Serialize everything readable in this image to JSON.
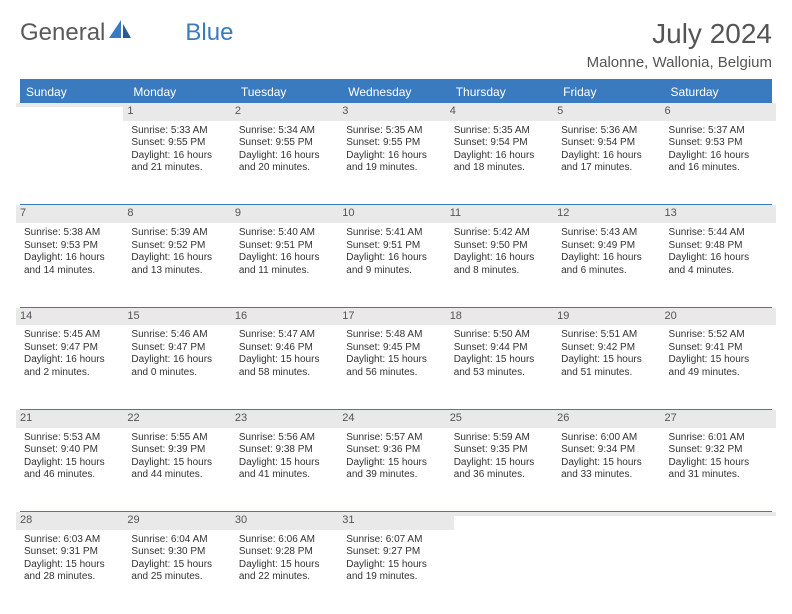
{
  "brand": {
    "text1": "General",
    "text2": "Blue",
    "logo_color": "#3a7bbf"
  },
  "title": "July 2024",
  "location": "Malonne, Wallonia, Belgium",
  "colors": {
    "header_bg": "#3a7bbf",
    "header_text": "#ffffff",
    "daynum_bg": "#e9e9e9",
    "rule": "#3a7bbf"
  },
  "day_headers": [
    "Sunday",
    "Monday",
    "Tuesday",
    "Wednesday",
    "Thursday",
    "Friday",
    "Saturday"
  ],
  "weeks": [
    [
      null,
      {
        "n": "1",
        "sr": "Sunrise: 5:33 AM",
        "ss": "Sunset: 9:55 PM",
        "dl": "Daylight: 16 hours and 21 minutes."
      },
      {
        "n": "2",
        "sr": "Sunrise: 5:34 AM",
        "ss": "Sunset: 9:55 PM",
        "dl": "Daylight: 16 hours and 20 minutes."
      },
      {
        "n": "3",
        "sr": "Sunrise: 5:35 AM",
        "ss": "Sunset: 9:55 PM",
        "dl": "Daylight: 16 hours and 19 minutes."
      },
      {
        "n": "4",
        "sr": "Sunrise: 5:35 AM",
        "ss": "Sunset: 9:54 PM",
        "dl": "Daylight: 16 hours and 18 minutes."
      },
      {
        "n": "5",
        "sr": "Sunrise: 5:36 AM",
        "ss": "Sunset: 9:54 PM",
        "dl": "Daylight: 16 hours and 17 minutes."
      },
      {
        "n": "6",
        "sr": "Sunrise: 5:37 AM",
        "ss": "Sunset: 9:53 PM",
        "dl": "Daylight: 16 hours and 16 minutes."
      }
    ],
    [
      {
        "n": "7",
        "sr": "Sunrise: 5:38 AM",
        "ss": "Sunset: 9:53 PM",
        "dl": "Daylight: 16 hours and 14 minutes."
      },
      {
        "n": "8",
        "sr": "Sunrise: 5:39 AM",
        "ss": "Sunset: 9:52 PM",
        "dl": "Daylight: 16 hours and 13 minutes."
      },
      {
        "n": "9",
        "sr": "Sunrise: 5:40 AM",
        "ss": "Sunset: 9:51 PM",
        "dl": "Daylight: 16 hours and 11 minutes."
      },
      {
        "n": "10",
        "sr": "Sunrise: 5:41 AM",
        "ss": "Sunset: 9:51 PM",
        "dl": "Daylight: 16 hours and 9 minutes."
      },
      {
        "n": "11",
        "sr": "Sunrise: 5:42 AM",
        "ss": "Sunset: 9:50 PM",
        "dl": "Daylight: 16 hours and 8 minutes."
      },
      {
        "n": "12",
        "sr": "Sunrise: 5:43 AM",
        "ss": "Sunset: 9:49 PM",
        "dl": "Daylight: 16 hours and 6 minutes."
      },
      {
        "n": "13",
        "sr": "Sunrise: 5:44 AM",
        "ss": "Sunset: 9:48 PM",
        "dl": "Daylight: 16 hours and 4 minutes."
      }
    ],
    [
      {
        "n": "14",
        "sr": "Sunrise: 5:45 AM",
        "ss": "Sunset: 9:47 PM",
        "dl": "Daylight: 16 hours and 2 minutes."
      },
      {
        "n": "15",
        "sr": "Sunrise: 5:46 AM",
        "ss": "Sunset: 9:47 PM",
        "dl": "Daylight: 16 hours and 0 minutes."
      },
      {
        "n": "16",
        "sr": "Sunrise: 5:47 AM",
        "ss": "Sunset: 9:46 PM",
        "dl": "Daylight: 15 hours and 58 minutes."
      },
      {
        "n": "17",
        "sr": "Sunrise: 5:48 AM",
        "ss": "Sunset: 9:45 PM",
        "dl": "Daylight: 15 hours and 56 minutes."
      },
      {
        "n": "18",
        "sr": "Sunrise: 5:50 AM",
        "ss": "Sunset: 9:44 PM",
        "dl": "Daylight: 15 hours and 53 minutes."
      },
      {
        "n": "19",
        "sr": "Sunrise: 5:51 AM",
        "ss": "Sunset: 9:42 PM",
        "dl": "Daylight: 15 hours and 51 minutes."
      },
      {
        "n": "20",
        "sr": "Sunrise: 5:52 AM",
        "ss": "Sunset: 9:41 PM",
        "dl": "Daylight: 15 hours and 49 minutes."
      }
    ],
    [
      {
        "n": "21",
        "sr": "Sunrise: 5:53 AM",
        "ss": "Sunset: 9:40 PM",
        "dl": "Daylight: 15 hours and 46 minutes."
      },
      {
        "n": "22",
        "sr": "Sunrise: 5:55 AM",
        "ss": "Sunset: 9:39 PM",
        "dl": "Daylight: 15 hours and 44 minutes."
      },
      {
        "n": "23",
        "sr": "Sunrise: 5:56 AM",
        "ss": "Sunset: 9:38 PM",
        "dl": "Daylight: 15 hours and 41 minutes."
      },
      {
        "n": "24",
        "sr": "Sunrise: 5:57 AM",
        "ss": "Sunset: 9:36 PM",
        "dl": "Daylight: 15 hours and 39 minutes."
      },
      {
        "n": "25",
        "sr": "Sunrise: 5:59 AM",
        "ss": "Sunset: 9:35 PM",
        "dl": "Daylight: 15 hours and 36 minutes."
      },
      {
        "n": "26",
        "sr": "Sunrise: 6:00 AM",
        "ss": "Sunset: 9:34 PM",
        "dl": "Daylight: 15 hours and 33 minutes."
      },
      {
        "n": "27",
        "sr": "Sunrise: 6:01 AM",
        "ss": "Sunset: 9:32 PM",
        "dl": "Daylight: 15 hours and 31 minutes."
      }
    ],
    [
      {
        "n": "28",
        "sr": "Sunrise: 6:03 AM",
        "ss": "Sunset: 9:31 PM",
        "dl": "Daylight: 15 hours and 28 minutes."
      },
      {
        "n": "29",
        "sr": "Sunrise: 6:04 AM",
        "ss": "Sunset: 9:30 PM",
        "dl": "Daylight: 15 hours and 25 minutes."
      },
      {
        "n": "30",
        "sr": "Sunrise: 6:06 AM",
        "ss": "Sunset: 9:28 PM",
        "dl": "Daylight: 15 hours and 22 minutes."
      },
      {
        "n": "31",
        "sr": "Sunrise: 6:07 AM",
        "ss": "Sunset: 9:27 PM",
        "dl": "Daylight: 15 hours and 19 minutes."
      },
      null,
      null,
      null
    ]
  ]
}
